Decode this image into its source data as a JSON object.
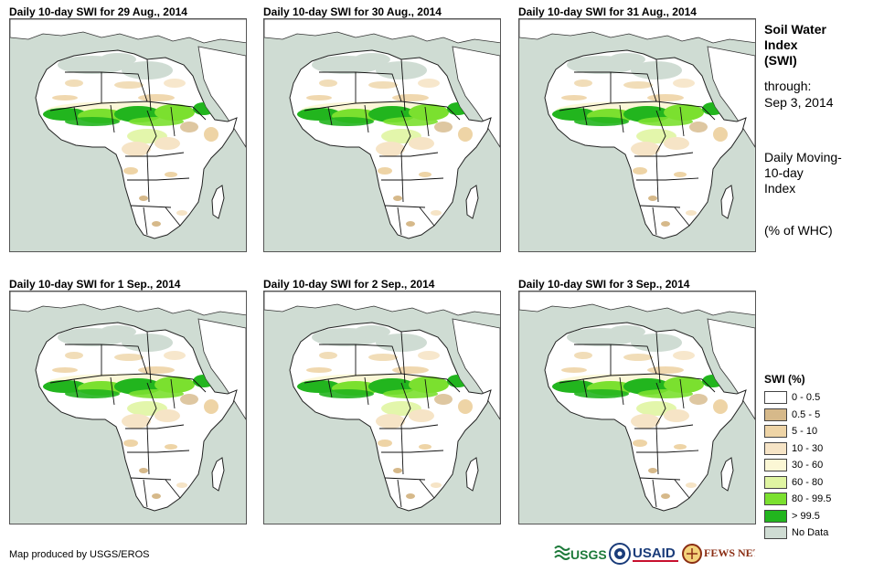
{
  "panels": [
    {
      "title": "Daily 10-day  SWI for 29 Aug., 2014"
    },
    {
      "title": "Daily 10-day  SWI for 30 Aug., 2014"
    },
    {
      "title": "Daily 10-day  SWI for 31 Aug., 2014"
    },
    {
      "title": "Daily 10-day  SWI for 1  Sep., 2014"
    },
    {
      "title": "Daily 10-day  SWI for 2  Sep., 2014"
    },
    {
      "title": "Daily 10-day  SWI for 3  Sep., 2014"
    }
  ],
  "info": {
    "title_lines": [
      "Soil Water",
      "Index",
      "(SWI)"
    ],
    "through_label": "through:",
    "through_date": "Sep 3, 2014",
    "desc_lines": [
      "Daily Moving-",
      "10-day",
      "Index"
    ],
    "units": "(% of WHC)"
  },
  "legend": {
    "title": "SWI (%)",
    "items": [
      {
        "label": "0 - 0.5",
        "color": "#ffffff"
      },
      {
        "label": "0.5 - 5",
        "color": "#d6b98a"
      },
      {
        "label": "5 - 10",
        "color": "#eed4a6"
      },
      {
        "label": "10 - 30",
        "color": "#f6e4c6"
      },
      {
        "label": "30 - 60",
        "color": "#fbf7d5"
      },
      {
        "label": "60 - 80",
        "color": "#e0f5a2"
      },
      {
        "label": "80 - 99.5",
        "color": "#7be02f"
      },
      {
        "label": "> 99.5",
        "color": "#22b51e"
      },
      {
        "label": "No Data",
        "color": "#cfdcd3"
      }
    ]
  },
  "footer": {
    "credit": "Map produced by USGS/EROS",
    "logos": [
      "USGS",
      "USAID",
      "FEWS NET"
    ]
  }
}
